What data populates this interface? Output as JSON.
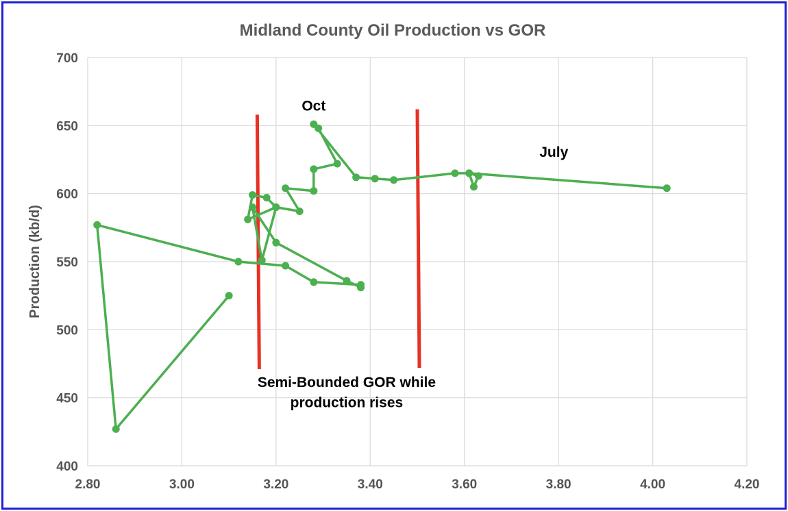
{
  "chart_data": {
    "type": "scatter",
    "title": "Midland County Oil Production vs GOR",
    "xlabel": "",
    "ylabel": "Production (kb/d)",
    "xlim": [
      2.8,
      4.2
    ],
    "ylim": [
      400,
      700
    ],
    "x_ticks": [
      "2.80",
      "3.00",
      "3.20",
      "3.40",
      "3.60",
      "3.80",
      "4.00",
      "4.20"
    ],
    "y_ticks": [
      "400",
      "450",
      "500",
      "550",
      "600",
      "650",
      "700"
    ],
    "grid": true,
    "series": [
      {
        "color": "#4caf50",
        "points": [
          [
            3.1,
            525
          ],
          [
            2.86,
            427
          ],
          [
            2.82,
            577
          ],
          [
            3.12,
            550
          ],
          [
            3.22,
            547
          ],
          [
            3.28,
            535
          ],
          [
            3.38,
            533
          ],
          [
            3.38,
            531
          ],
          [
            3.35,
            536
          ],
          [
            3.2,
            564
          ],
          [
            3.15,
            590
          ],
          [
            3.17,
            551
          ],
          [
            3.2,
            590
          ],
          [
            3.14,
            581
          ],
          [
            3.15,
            599
          ],
          [
            3.18,
            597
          ],
          [
            3.2,
            590
          ],
          [
            3.25,
            587
          ],
          [
            3.22,
            604
          ],
          [
            3.28,
            602
          ],
          [
            3.28,
            618
          ],
          [
            3.33,
            622
          ],
          [
            3.29,
            648
          ],
          [
            3.28,
            651
          ],
          [
            3.37,
            612
          ],
          [
            3.41,
            611
          ],
          [
            3.45,
            610
          ],
          [
            3.58,
            615
          ],
          [
            3.61,
            615
          ],
          [
            3.63,
            613
          ],
          [
            3.62,
            605
          ],
          [
            3.61,
            615
          ],
          [
            4.03,
            604
          ]
        ]
      }
    ],
    "vertical_lines": [
      {
        "color": "#e53225",
        "x": 3.16,
        "y_from": 471,
        "y_to": 658
      },
      {
        "color": "#e53225",
        "x": 3.5,
        "y_from": 472,
        "y_to": 662
      }
    ],
    "annotations": [
      {
        "text": "Oct",
        "x": 3.28,
        "y": 661
      },
      {
        "text": "July",
        "x": 3.79,
        "y": 627
      },
      {
        "text": "Semi-Bounded GOR while",
        "x": 3.35,
        "y": 458
      },
      {
        "text": "production rises",
        "x": 3.35,
        "y": 443
      }
    ]
  }
}
